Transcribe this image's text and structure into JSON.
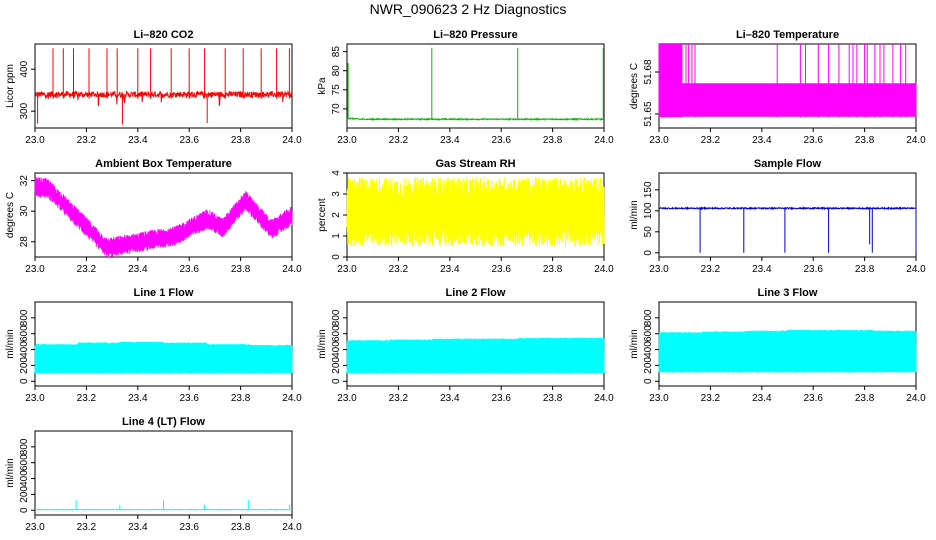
{
  "title": "NWR_090623  2 Hz Diagnostics",
  "chart_data": [
    {
      "type": "line",
      "title": "Li–820 CO2",
      "ylabel": "Licor ppm",
      "color": "#ff0000",
      "xlim": [
        23.0,
        24.0
      ],
      "ylim": [
        260,
        460
      ],
      "yticks": [
        300,
        400
      ],
      "xticks": [
        "23.0",
        "23.2",
        "23.4",
        "23.6",
        "23.8",
        "24.0"
      ],
      "pattern": "co2"
    },
    {
      "type": "line",
      "title": "Li–820 Pressure",
      "ylabel": "kPa",
      "color": "#00bb00",
      "xlim": [
        23.0,
        24.0
      ],
      "ylim": [
        65,
        87
      ],
      "yticks": [
        70,
        75,
        80,
        85
      ],
      "xticks": [
        "23.0",
        "23.2",
        "23.4",
        "23.6",
        "23.8",
        "24.0"
      ],
      "pattern": "pressure"
    },
    {
      "type": "line",
      "title": "Li–820 Temperature",
      "ylabel": "degrees C",
      "color": "#ff00ff",
      "xlim": [
        23.0,
        24.0
      ],
      "ylim": [
        51.64,
        51.7
      ],
      "yticks": [
        51.65,
        51.68
      ],
      "xticks": [
        "23.0",
        "23.2",
        "23.4",
        "23.6",
        "23.8",
        "24.0"
      ],
      "pattern": "licortemp"
    },
    {
      "type": "line",
      "title": "Ambient Box Temperature",
      "ylabel": "degrees C",
      "color": "#ff00ff",
      "xlim": [
        23.0,
        24.0
      ],
      "ylim": [
        27,
        32.5
      ],
      "yticks": [
        28,
        30,
        32
      ],
      "xticks": [
        "23.0",
        "23.2",
        "23.4",
        "23.6",
        "23.8",
        "24.0"
      ],
      "pattern": "ambient"
    },
    {
      "type": "line",
      "title": "Gas Stream RH",
      "ylabel": "percent",
      "color": "#ffff00",
      "xlim": [
        23.0,
        24.0
      ],
      "ylim": [
        0,
        4
      ],
      "yticks": [
        0,
        1,
        2,
        3,
        4
      ],
      "xticks": [
        "23.0",
        "23.2",
        "23.4",
        "23.6",
        "23.8",
        "24.0"
      ],
      "pattern": "rh"
    },
    {
      "type": "line",
      "title": "Sample Flow",
      "ylabel": "ml/min",
      "color": "#0000cc",
      "xlim": [
        23.0,
        24.0
      ],
      "ylim": [
        -10,
        190
      ],
      "yticks": [
        0,
        50,
        100,
        150
      ],
      "xticks": [
        "23.0",
        "23.2",
        "23.4",
        "23.6",
        "23.8",
        "24.0"
      ],
      "pattern": "sample"
    },
    {
      "type": "line",
      "title": "Line 1 Flow",
      "ylabel": "ml/min",
      "color": "#00ffff",
      "xlim": [
        23.0,
        24.0
      ],
      "ylim": [
        -60,
        1000
      ],
      "yticks": [
        0,
        200,
        400,
        600,
        800
      ],
      "xticks": [
        "23.0",
        "23.2",
        "23.4",
        "23.6",
        "23.8",
        "24.0"
      ],
      "pattern": "line1"
    },
    {
      "type": "line",
      "title": "Line 2 Flow",
      "ylabel": "ml/min",
      "color": "#00ffff",
      "xlim": [
        23.0,
        24.0
      ],
      "ylim": [
        -60,
        1000
      ],
      "yticks": [
        0,
        200,
        400,
        600,
        800
      ],
      "xticks": [
        "23.0",
        "23.2",
        "23.4",
        "23.6",
        "23.8",
        "24.0"
      ],
      "pattern": "line2"
    },
    {
      "type": "line",
      "title": "Line 3 Flow",
      "ylabel": "ml/min",
      "color": "#00ffff",
      "xlim": [
        23.0,
        24.0
      ],
      "ylim": [
        -60,
        1000
      ],
      "yticks": [
        0,
        200,
        400,
        600,
        800
      ],
      "xticks": [
        "23.0",
        "23.2",
        "23.4",
        "23.6",
        "23.8",
        "24.0"
      ],
      "pattern": "line3"
    },
    {
      "type": "line",
      "title": "Line 4 (LT) Flow",
      "ylabel": "ml/min",
      "color": "#00ffff",
      "xlim": [
        23.0,
        24.0
      ],
      "ylim": [
        -60,
        1000
      ],
      "yticks": [
        0,
        200,
        400,
        600,
        800
      ],
      "xticks": [
        "23.0",
        "23.2",
        "23.4",
        "23.6",
        "23.8",
        "24.0"
      ],
      "pattern": "line4"
    }
  ]
}
